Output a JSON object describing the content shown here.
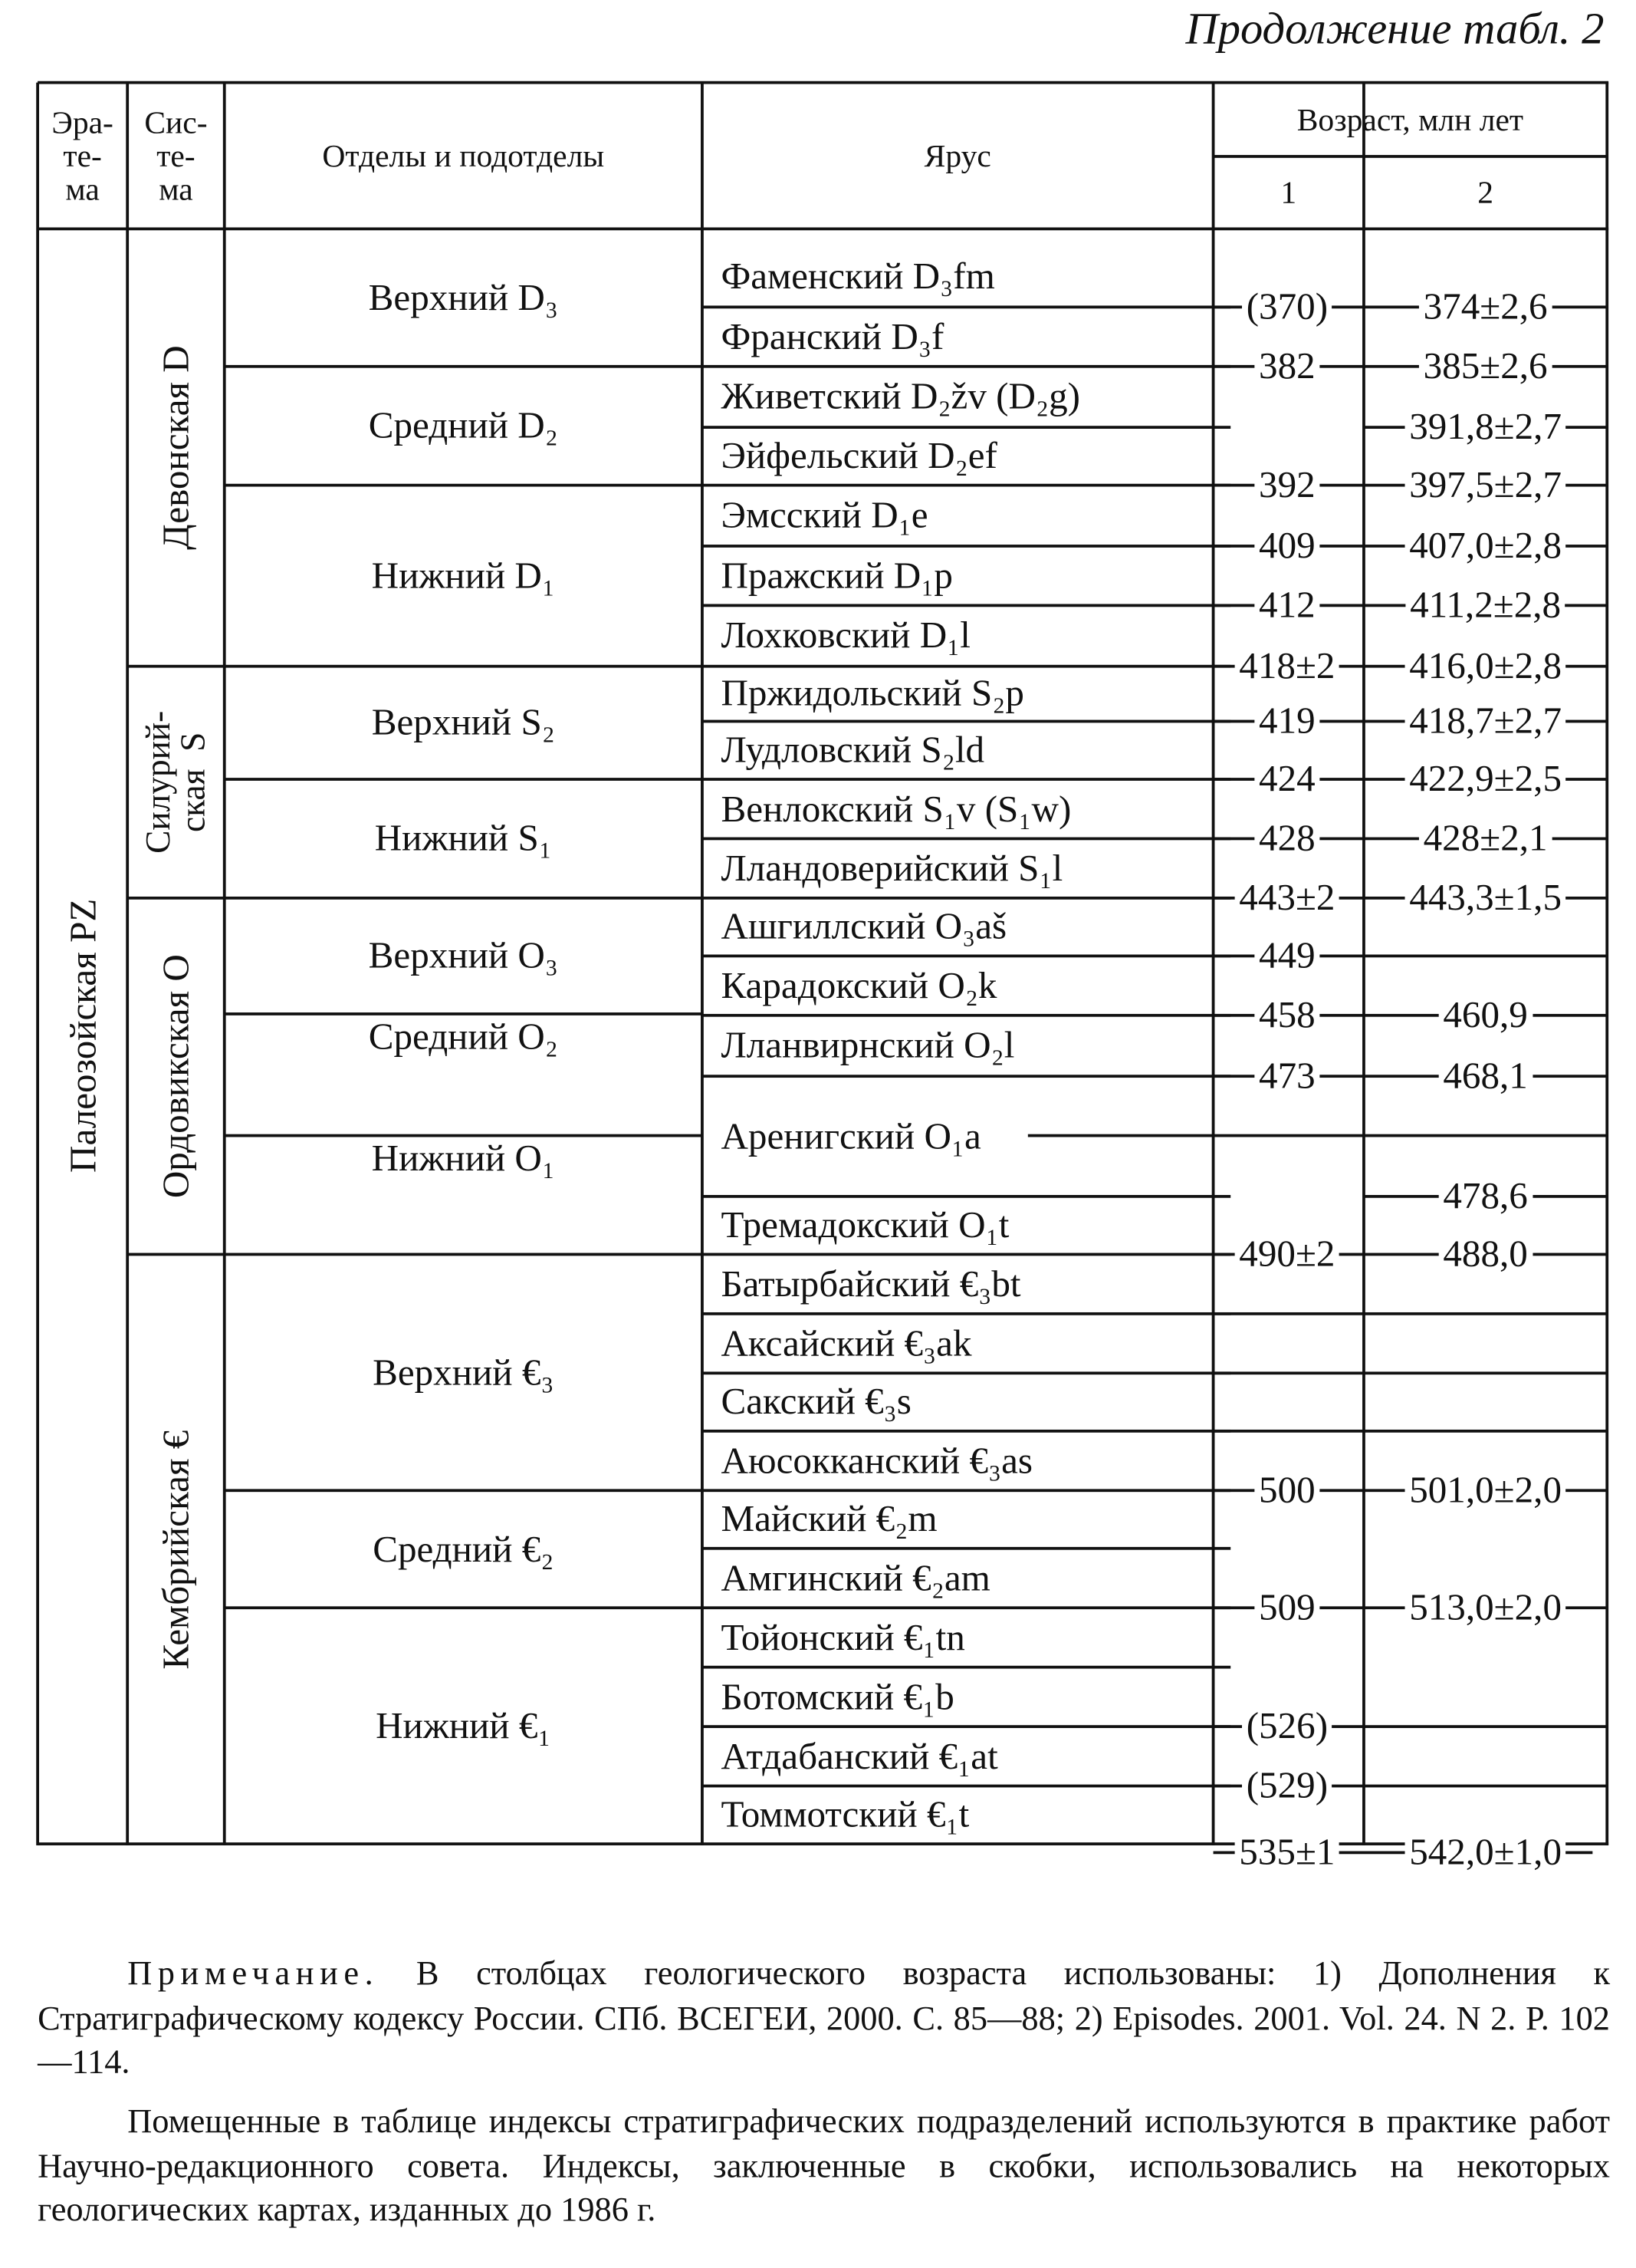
{
  "caption": "Продолжение табл. 2",
  "header": {
    "erathem": "Эра-\nте-\nма",
    "system": "Сис-\nте-\nма",
    "series": "Отделы и подотделы",
    "stage": "Ярус",
    "age": "Возраст, млн лет",
    "age_col1": "1",
    "age_col2": "2"
  },
  "erathem": "Палеозойская  PZ",
  "systems": [
    {
      "name": "Девонская  D"
    },
    {
      "name": "Силурий-\nская  S"
    },
    {
      "name": "Ордовикская  O"
    },
    {
      "name": "Кембрийская  €"
    }
  ],
  "series": [
    "Верхний D₃",
    "Средний D₂",
    "Нижний D₁",
    "Верхний S₂",
    "Нижний S₁",
    "Верхний O₃",
    "Средний O₂",
    "Нижний O₁",
    "Верхний €₃",
    "Средний €₂",
    "Нижний €₁"
  ],
  "stages": [
    "Фаменский D₃fm",
    "Франский D₃f",
    "Живетский D₂žv (D₂g)",
    "Эйфельский D₂ef",
    "Эмсский D₁e",
    "Пражский D₁p",
    "Лохковский D₁l",
    "Пржидольский S₂p",
    "Лудловский S₂ld",
    "Венлокский S₁v (S₁w)",
    "Лландоверийский S₁l",
    "Ашгиллский O₃aš",
    "Карадокский O₂k",
    "Лланвирнский O₂l",
    "Аренигский O₁a",
    "Тремадокский O₁t",
    "Батырбайский €₃bt",
    "Аксайский €₃ak",
    "Сакский €₃s",
    "Аюсокканский €₃as",
    "Майский €₂m",
    "Амгинский €₂am",
    "Тойонский €₁tn",
    "Ботомский €₁b",
    "Атдабанский €₁at",
    "Томмотский €₁t"
  ],
  "ages": [
    {
      "age1": "(370)",
      "age2": "374±2,6"
    },
    {
      "age1": "382",
      "age2": "385±2,6"
    },
    {
      "age1": "",
      "age2": "391,8±2,7"
    },
    {
      "age1": "392",
      "age2": "397,5±2,7"
    },
    {
      "age1": "409",
      "age2": "407,0±2,8"
    },
    {
      "age1": "412",
      "age2": "411,2±2,8"
    },
    {
      "age1": "418±2",
      "age2": "416,0±2,8"
    },
    {
      "age1": "419",
      "age2": "418,7±2,7"
    },
    {
      "age1": "424",
      "age2": "422,9±2,5"
    },
    {
      "age1": "428",
      "age2": "428±2,1"
    },
    {
      "age1": "443±2",
      "age2": "443,3±1,5"
    },
    {
      "age1": "449",
      "age2": ""
    },
    {
      "age1": "458",
      "age2": "460,9"
    },
    {
      "age1": "473",
      "age2": "468,1"
    },
    {
      "age1": "",
      "age2": "478,6"
    },
    {
      "age1": "490±2",
      "age2": "488,0"
    },
    {
      "age1": "",
      "age2": ""
    },
    {
      "age1": "",
      "age2": ""
    },
    {
      "age1": "",
      "age2": ""
    },
    {
      "age1": "500",
      "age2": "501,0±2,0"
    },
    {
      "age1": "",
      "age2": ""
    },
    {
      "age1": "509",
      "age2": "513,0±2,0"
    },
    {
      "age1": "",
      "age2": ""
    },
    {
      "age1": "(526)",
      "age2": ""
    },
    {
      "age1": "(529)",
      "age2": ""
    },
    {
      "age1": "535±1",
      "age2": "542,0±1,0"
    }
  ],
  "note": {
    "label": "Примечание.",
    "text1": "В столбцах геологического возраста использованы: 1) Дополнения к Стратиграфическому кодексу России. СПб. ВСЕГЕИ, 2000. С. 85—88; 2) Episodes. 2001. Vol. 24. N 2. P. 102—114.",
    "text2": "Помещенные в таблице индексы стратиграфических подразделений используются в практике работ Научно-редакционного совета. Индексы, заключенные в скобки, использовались на некоторых геологических картах, изданных до 1986 г."
  }
}
